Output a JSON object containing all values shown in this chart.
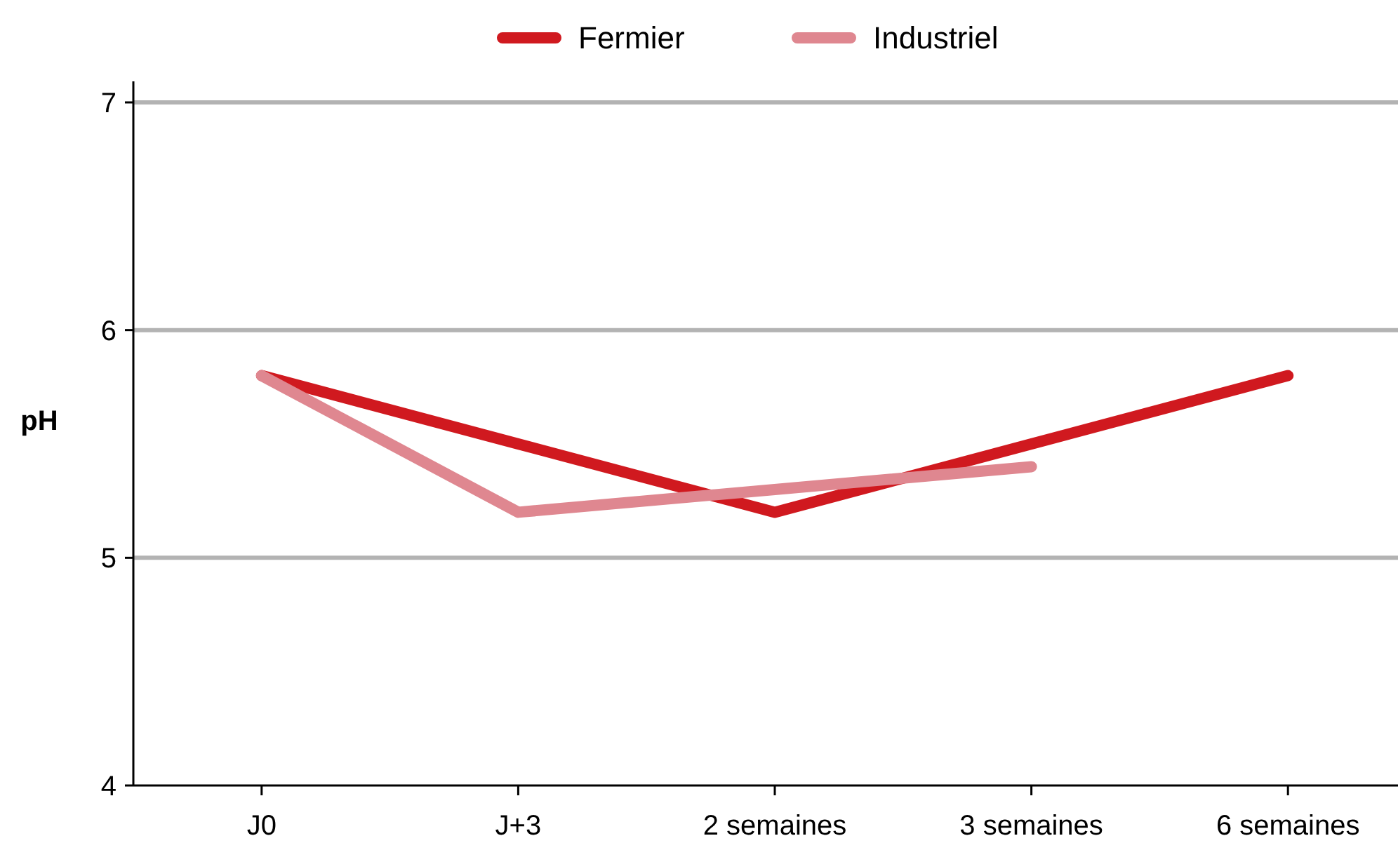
{
  "chart_data": {
    "type": "line",
    "ylabel": "pH",
    "categories": [
      "J0",
      "J+3",
      "2 semaines",
      "3 semaines",
      "6 semaines"
    ],
    "series": [
      {
        "name": "Fermier",
        "color": "#d0191f",
        "values": [
          5.8,
          5.5,
          5.2,
          5.5,
          5.8
        ]
      },
      {
        "name": "Industriel",
        "color": "#df8790",
        "values": [
          5.8,
          5.2,
          5.3,
          5.4,
          null
        ]
      }
    ],
    "ylim": [
      4,
      7
    ],
    "yticks": [
      4,
      5,
      6,
      7
    ],
    "grid": "y",
    "legend": "top",
    "marker": "none",
    "line_style": "solid"
  }
}
